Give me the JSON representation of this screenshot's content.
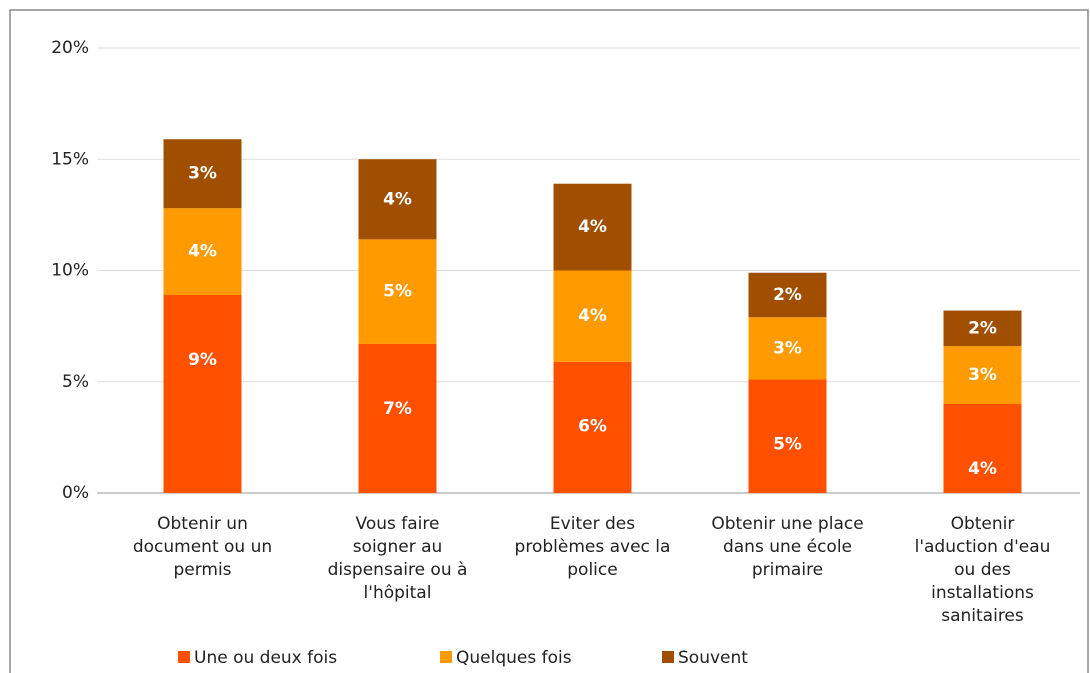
{
  "chart_data": {
    "type": "stacked_bar",
    "categories": [
      "Obtenir un document ou un permis",
      "Vous faire soigner au dispensaire ou à l'hôpital",
      "Eviter des problèmes avec la police",
      "Obtenir une place dans une école primaire",
      "Obtenir l'aduction d'eau ou des installations sanitaires"
    ],
    "series": [
      {
        "name": "Une ou deux fois",
        "color": "#ff5000",
        "values": [
          8.9,
          6.7,
          5.9,
          5.1,
          4.0
        ],
        "value_labels": [
          "9%",
          "7%",
          "6%",
          "5%",
          "4%"
        ]
      },
      {
        "name": "Quelques fois",
        "color": "#ff9a00",
        "values": [
          3.9,
          4.7,
          4.1,
          2.8,
          2.6
        ],
        "value_labels": [
          "4%",
          "5%",
          "4%",
          "3%",
          "3%"
        ]
      },
      {
        "name": "Souvent",
        "color": "#a04f00",
        "values": [
          3.1,
          3.6,
          3.9,
          2.0,
          1.6
        ],
        "value_labels": [
          "3%",
          "4%",
          "4%",
          "2%",
          "2%"
        ]
      }
    ],
    "ylim": [
      0,
      20
    ],
    "yticks": [
      {
        "value": 0,
        "label": "0%"
      },
      {
        "value": 5,
        "label": "5%"
      },
      {
        "value": 10,
        "label": "10%"
      },
      {
        "value": 15,
        "label": "15%"
      },
      {
        "value": 20,
        "label": "20%"
      }
    ],
    "grid": true,
    "legend": "bottom"
  }
}
